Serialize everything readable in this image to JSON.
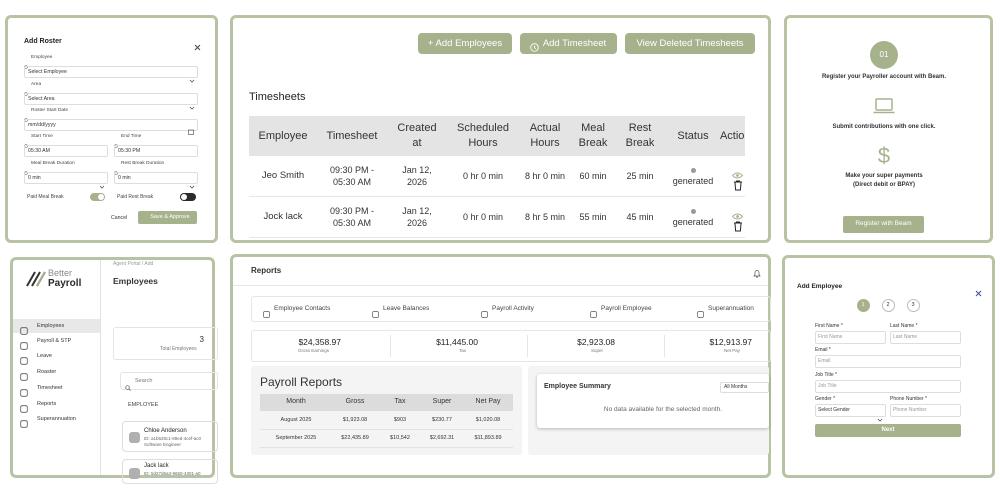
{
  "roster": {
    "title": "Add Roster",
    "employee_label": "Employee",
    "employee_value": "Select Employee",
    "area_label": "Area",
    "area_value": "Select Area",
    "date_label": "Roster Start Date",
    "date_value": "mm/dd/yyyy",
    "start_label": "Start Time",
    "start_value": "05:30 AM",
    "end_label": "End Time",
    "end_value": "05:30 PM",
    "meal_label": "Meal Break Duration",
    "meal_value": "0 min",
    "rest_label": "Rest Break Duration",
    "rest_value": "0 min",
    "paid_meal": "Paid Meal Break",
    "paid_rest": "Paid Rest Break",
    "cancel": "Cancel",
    "save": "Save & Approve"
  },
  "timesheets": {
    "buttons": [
      "+ Add Employees",
      "Add Timesheet",
      "View Deleted Timesheets"
    ],
    "heading": "Timesheets",
    "columns": [
      "Employee",
      "Timesheet",
      "Created at",
      "Scheduled Hours",
      "Actual Hours",
      "Meal Break",
      "Rest Break",
      "Status",
      "Actions"
    ],
    "rows": [
      [
        "Jeo Smith",
        "09:30 PM - 05:30 AM",
        "Jan 12, 2026",
        "0 hr 0 min",
        "8 hr 0 min",
        "60 min",
        "25 min",
        "generated"
      ],
      [
        "Jock lack",
        "09:30 PM - 05:30 AM",
        "Jan 12, 2026",
        "0 hr 0 min",
        "8 hr 5 min",
        "55 min",
        "45 min",
        "generated"
      ]
    ]
  },
  "beam": {
    "step": "01",
    "line1": "Register your Payroller account with Beam.",
    "line2": "Submit contributions with one click.",
    "symbol": "$",
    "line3": "Make your super payments",
    "line4": "(Direct debit or BPAY)",
    "button": "Register with Beam"
  },
  "sidebar": {
    "logo_top": "Better",
    "logo_bottom": "Payroll",
    "breadcrumb": "Agent Portal  /  Add",
    "title": "Employees",
    "nav": [
      "Employees",
      "Payroll & STP",
      "Leave",
      "Roaster",
      "Timesheet",
      "Reports",
      "Superannuation"
    ],
    "count": "3",
    "count_label": "Total Employees",
    "search": "Search",
    "list_header": "EMPLOYEE",
    "employees": [
      {
        "name": "Chloe Anderson",
        "id": "ID: a1b528c1-89ed-4cef-ac0",
        "role": "Software Engineer"
      },
      {
        "name": "Jack lack",
        "id": "ID: 5d27d6a3-9650-4301-a0"
      }
    ]
  },
  "reports": {
    "title": "Reports",
    "tabs": [
      "Employee Contacts",
      "Leave Balances",
      "Payroll Activity",
      "Payroll Employee",
      "Superannuation"
    ],
    "summary": [
      {
        "value": "$24,358.97",
        "label": "Gross Earnings"
      },
      {
        "value": "$11,445.00",
        "label": "Tax"
      },
      {
        "value": "$2,923.08",
        "label": "Super"
      },
      {
        "value": "$12,913.97",
        "label": "Net Pay"
      }
    ],
    "payroll_title": "Payroll Reports",
    "columns": [
      "Month",
      "Gross",
      "Tax",
      "Super",
      "Net Pay"
    ],
    "rows": [
      [
        "August 2025",
        "$1,923.08",
        "$903",
        "$230.77",
        "$1,020.08"
      ],
      [
        "September 2025",
        "$22,435.89",
        "$10,542",
        "$2,692.31",
        "$11,893.89"
      ]
    ],
    "summary_title": "Employee Summary",
    "filter": "All Months",
    "empty": "No data available for the selected month."
  },
  "add_employee": {
    "title": "Add Employee",
    "steps": [
      "1",
      "2",
      "3"
    ],
    "first_label": "First Name *",
    "first_ph": "First Name",
    "last_label": "Last Name *",
    "last_ph": "Last Name",
    "email_label": "Email *",
    "email_ph": "Email",
    "job_label": "Job Title *",
    "job_ph": "Job Title",
    "gender_label": "Gender *",
    "gender_ph": "Select Gender",
    "phone_label": "Phone Number *",
    "phone_ph": "Phone Number",
    "next": "Next"
  }
}
